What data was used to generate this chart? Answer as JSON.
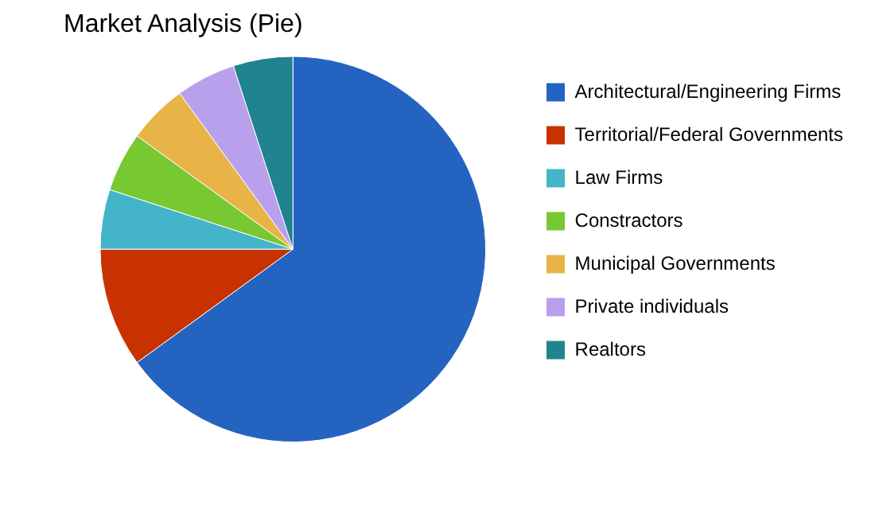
{
  "chart_data": {
    "type": "pie",
    "title": "Market Analysis (Pie)",
    "categories": [
      "Architectural/Engineering Firms",
      "Territorial/Federal Governments",
      "Law Firms",
      "Constractors",
      "Municipal Governments",
      "Private individuals",
      "Realtors"
    ],
    "values": [
      65,
      10,
      5,
      5,
      5,
      5,
      5
    ],
    "colors": [
      "#2563c0",
      "#c83200",
      "#44b4c8",
      "#78c832",
      "#e8b448",
      "#b8a0ec",
      "#20848f"
    ],
    "legend": "right"
  }
}
